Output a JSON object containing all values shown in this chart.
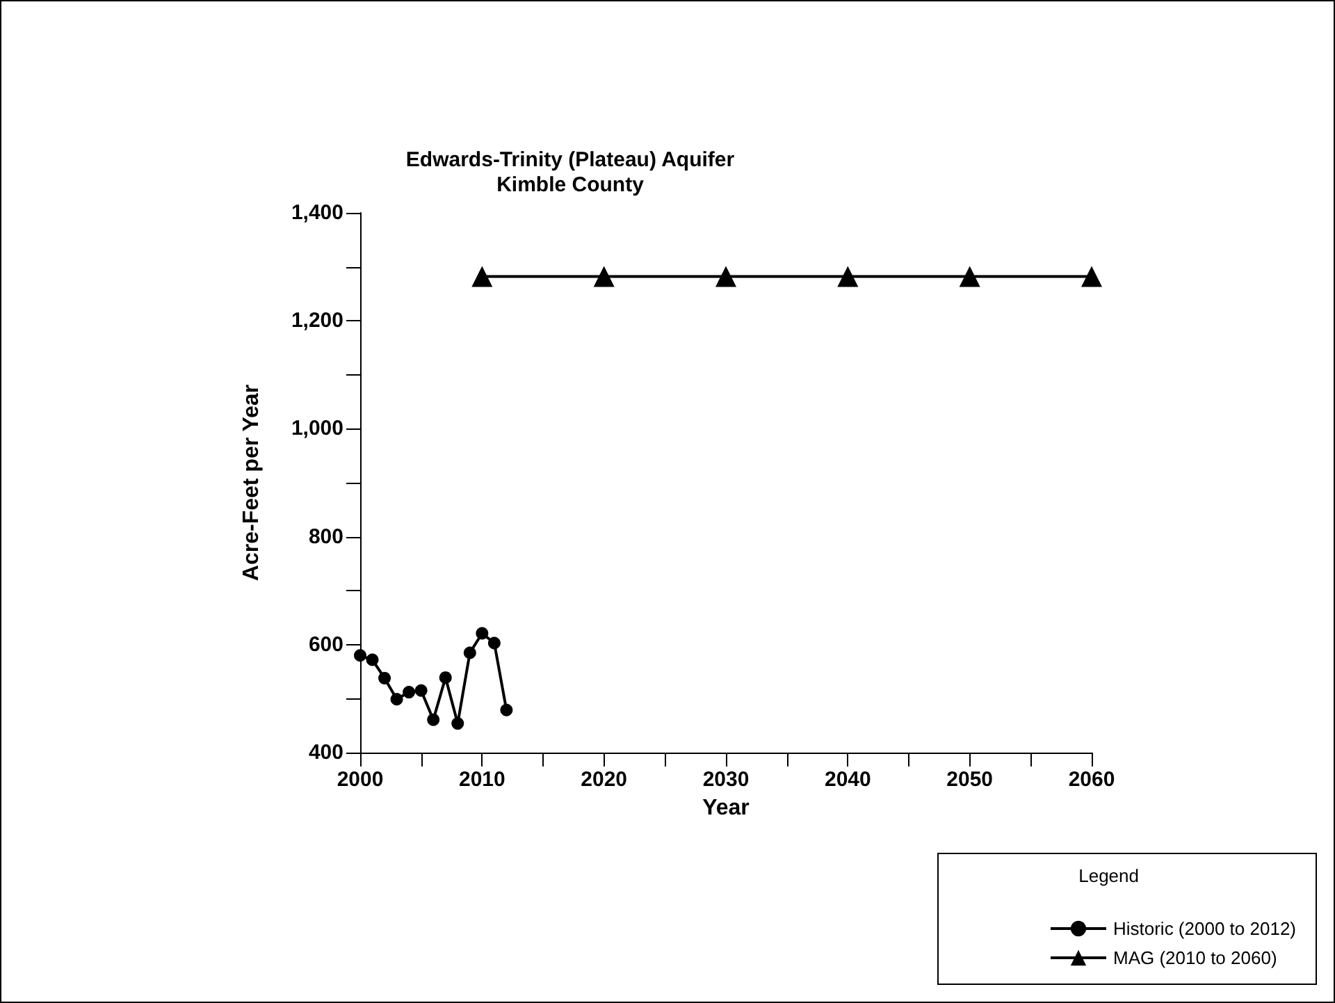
{
  "chart_data": {
    "type": "line",
    "title": "Edwards-Trinity (Plateau) Aquifer\nKimble County",
    "xlabel": "Year",
    "ylabel": "Acre-Feet per Year",
    "legend_title": "Legend",
    "series": [
      {
        "name": "Historic (2000 to 2012)",
        "color": "#000000",
        "marker": "circle",
        "x": [
          2000,
          2001,
          2002,
          2003,
          2004,
          2005,
          2006,
          2007,
          2008,
          2009,
          2010,
          2011,
          2012
        ],
        "values": [
          580,
          572,
          538,
          499,
          512,
          515,
          461,
          539,
          454,
          585,
          621,
          603,
          479
        ]
      },
      {
        "name": "MAG (2010 to 2060)",
        "color": "#000000",
        "marker": "triangle",
        "x": [
          2010,
          2020,
          2030,
          2040,
          2050,
          2060
        ],
        "values": [
          1282,
          1282,
          1282,
          1282,
          1282,
          1282
        ]
      }
    ],
    "xlim": [
      2000,
      2060
    ],
    "xticks": [
      2000,
      {
        "value": 2005,
        "label": null
      },
      2010,
      {
        "value": 2015,
        "label": null
      },
      2020,
      {
        "value": 2025,
        "label": null
      },
      2030,
      {
        "value": 2035,
        "label": null
      },
      2040,
      {
        "value": 2045,
        "label": null
      },
      2050,
      {
        "value": 2055,
        "label": null
      },
      2060
    ],
    "ylim": [
      400,
      1400
    ],
    "yticks": [
      {
        "value": 400,
        "label": "400"
      },
      {
        "value": 500,
        "label": null
      },
      {
        "value": 600,
        "label": "600"
      },
      {
        "value": 700,
        "label": null
      },
      {
        "value": 800,
        "label": "800"
      },
      {
        "value": 900,
        "label": null
      },
      {
        "value": 1000,
        "label": "1,000"
      },
      {
        "value": 1100,
        "label": null
      },
      {
        "value": 1200,
        "label": "1,200"
      },
      {
        "value": 1300,
        "label": null
      },
      {
        "value": 1400,
        "label": "1,400"
      }
    ],
    "grid": false,
    "legend": "bottom right",
    "line_style": "solid"
  }
}
